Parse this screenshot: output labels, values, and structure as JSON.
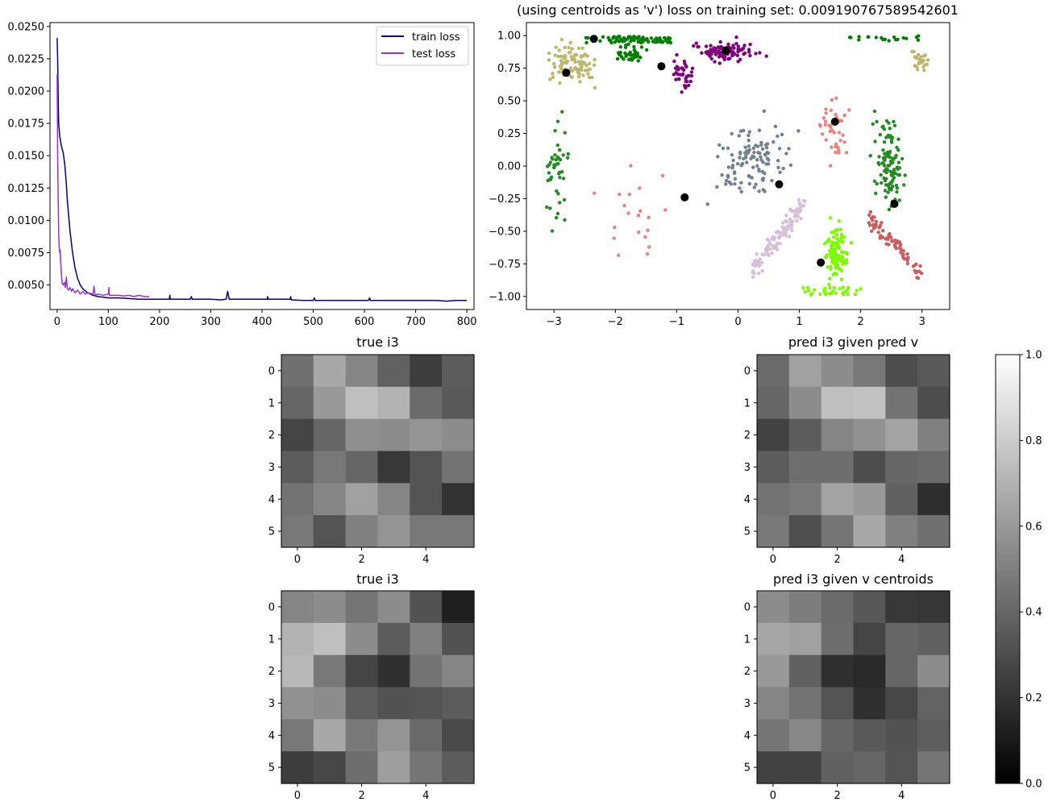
{
  "chart_data": [
    {
      "type": "line",
      "title": "",
      "xlim": [
        -14,
        814
      ],
      "ylim": [
        0.0031,
        0.0253
      ],
      "xticks": [
        "0",
        "100",
        "200",
        "300",
        "400",
        "500",
        "600",
        "700",
        "800"
      ],
      "yticks": [
        "0.0050",
        "0.0075",
        "0.0100",
        "0.0125",
        "0.0150",
        "0.0175",
        "0.0200",
        "0.0225",
        "0.0250"
      ],
      "legend": "top-right",
      "series": [
        {
          "name": "train loss",
          "color": "#00008b",
          "x": [
            0,
            1,
            2,
            3,
            5,
            8,
            10,
            12,
            15,
            18,
            20,
            25,
            30,
            35,
            40,
            45,
            50,
            60,
            70,
            80,
            90,
            100,
            120,
            140,
            160,
            180,
            200,
            219,
            220,
            221,
            240,
            260,
            262,
            264,
            280,
            300,
            320,
            330,
            333,
            336,
            360,
            380,
            400,
            410,
            411,
            412,
            440,
            455,
            456,
            457,
            480,
            500,
            502,
            504,
            520,
            540,
            560,
            580,
            600,
            608,
            610,
            612,
            640,
            660,
            680,
            700,
            720,
            740,
            760,
            780,
            800
          ],
          "y": [
            0.0241,
            0.0225,
            0.0195,
            0.0175,
            0.0165,
            0.0158,
            0.0155,
            0.0152,
            0.0143,
            0.0128,
            0.0115,
            0.0092,
            0.0075,
            0.0063,
            0.0055,
            0.005,
            0.0047,
            0.0044,
            0.0042,
            0.0041,
            0.00405,
            0.004,
            0.004,
            0.00395,
            0.0039,
            0.0039,
            0.0039,
            0.0039,
            0.0042,
            0.0039,
            0.0039,
            0.0039,
            0.0041,
            0.0039,
            0.0039,
            0.0039,
            0.00385,
            0.0039,
            0.0045,
            0.0039,
            0.0039,
            0.0039,
            0.0039,
            0.0039,
            0.0041,
            0.0039,
            0.0039,
            0.0039,
            0.0041,
            0.00385,
            0.0038,
            0.0038,
            0.004,
            0.0038,
            0.0038,
            0.0038,
            0.0038,
            0.0038,
            0.0038,
            0.0038,
            0.004,
            0.0038,
            0.0038,
            0.0038,
            0.0038,
            0.0038,
            0.0038,
            0.0038,
            0.00375,
            0.0038,
            0.0038
          ]
        },
        {
          "name": "test loss",
          "color": "#9932cc",
          "x": [
            0,
            1,
            2,
            3,
            4,
            5,
            6,
            7,
            8,
            9,
            10,
            12,
            14,
            16,
            18,
            20,
            22,
            25,
            28,
            30,
            35,
            40,
            45,
            50,
            55,
            60,
            70,
            72,
            74,
            80,
            90,
            100,
            101,
            102,
            110,
            120,
            130,
            140,
            150,
            160,
            170,
            180
          ],
          "y": [
            0.0213,
            0.015,
            0.0115,
            0.009,
            0.008,
            0.0075,
            0.0077,
            0.0068,
            0.006,
            0.0055,
            0.0051,
            0.005,
            0.0052,
            0.0048,
            0.0056,
            0.0047,
            0.0046,
            0.0048,
            0.0045,
            0.0047,
            0.0044,
            0.0046,
            0.0043,
            0.0045,
            0.0043,
            0.0044,
            0.0043,
            0.0049,
            0.0042,
            0.0043,
            0.0042,
            0.0043,
            0.0048,
            0.0042,
            0.0042,
            0.0042,
            0.00415,
            0.0042,
            0.0041,
            0.0042,
            0.0041,
            0.0041
          ]
        }
      ]
    },
    {
      "type": "scatter",
      "title": "(using centroids as 'v') loss on training set: 0.009190767589542601",
      "xlim": [
        -3.45,
        3.45
      ],
      "ylim": [
        -1.1,
        1.1
      ],
      "xticks": [
        "−3",
        "−2",
        "−1",
        "0",
        "1",
        "2",
        "3"
      ],
      "yticks": [
        "−1.00",
        "−0.75",
        "−0.50",
        "−0.25",
        "0.00",
        "0.25",
        "0.50",
        "0.75",
        "1.00"
      ],
      "clusters": [
        {
          "color": "#008000",
          "n": 80,
          "shape": "band",
          "cx": -1.8,
          "cy": 0.97,
          "sx": 0.7,
          "sy": 0.025
        },
        {
          "color": "#008000",
          "n": 40,
          "shape": "blob",
          "cx": -1.75,
          "cy": 0.86,
          "sx": 0.18,
          "sy": 0.05
        },
        {
          "color": "#bdb76b",
          "n": 100,
          "shape": "blob",
          "cx": -2.7,
          "cy": 0.78,
          "sx": 0.28,
          "sy": 0.1
        },
        {
          "color": "#bdb76b",
          "n": 28,
          "shape": "blob",
          "cx": 2.95,
          "cy": 0.82,
          "sx": 0.1,
          "sy": 0.07
        },
        {
          "color": "#800080",
          "n": 100,
          "shape": "blob",
          "cx": -0.2,
          "cy": 0.88,
          "sx": 0.35,
          "sy": 0.05
        },
        {
          "color": "#800080",
          "n": 40,
          "shape": "blob",
          "cx": -0.9,
          "cy": 0.72,
          "sx": 0.12,
          "sy": 0.09
        },
        {
          "color": "#008000",
          "n": 20,
          "shape": "band",
          "cx": 2.4,
          "cy": 0.98,
          "sx": 0.6,
          "sy": 0.02
        },
        {
          "color": "#228b22",
          "n": 110,
          "shape": "blob",
          "cx": 2.45,
          "cy": 0.05,
          "sx": 0.16,
          "sy": 0.25
        },
        {
          "color": "#228b22",
          "n": 45,
          "shape": "blob",
          "cx": -2.95,
          "cy": -0.05,
          "sx": 0.14,
          "sy": 0.25
        },
        {
          "color": "#f08080",
          "n": 40,
          "shape": "blob",
          "cx": 1.55,
          "cy": 0.28,
          "sx": 0.17,
          "sy": 0.15
        },
        {
          "color": "#f08080",
          "n": 20,
          "shape": "blob",
          "cx": -1.7,
          "cy": -0.35,
          "sx": 0.45,
          "sy": 0.25
        },
        {
          "color": "#708090",
          "n": 110,
          "shape": "blob",
          "cx": 0.25,
          "cy": 0.03,
          "sx": 0.45,
          "sy": 0.2
        },
        {
          "color": "#d8bfd8",
          "n": 110,
          "shape": "diag",
          "cx": 0.65,
          "cy": -0.55,
          "sx": 0.45,
          "sy": 0.06
        },
        {
          "color": "#7cfc00",
          "n": 110,
          "shape": "blob",
          "cx": 1.6,
          "cy": -0.65,
          "sx": 0.13,
          "sy": 0.14
        },
        {
          "color": "#7cfc00",
          "n": 30,
          "shape": "band",
          "cx": 1.55,
          "cy": -0.96,
          "sx": 0.5,
          "sy": 0.03
        },
        {
          "color": "#cd5c5c",
          "n": 75,
          "shape": "diag2",
          "cx": 2.55,
          "cy": -0.6,
          "sx": 0.45,
          "sy": 0.05
        }
      ],
      "centroids": {
        "color": "#000000",
        "x": [
          -2.35,
          -2.8,
          -1.25,
          -0.2,
          -0.87,
          0.67,
          1.58,
          2.55,
          1.35
        ],
        "y": [
          0.975,
          0.715,
          0.765,
          0.885,
          -0.24,
          -0.14,
          0.34,
          -0.29,
          -0.74
        ]
      }
    },
    {
      "type": "heatmap",
      "title": "true i3",
      "colormap": "gray",
      "vmin": 0,
      "vmax": 1,
      "xticks": [
        "0",
        "2",
        "4"
      ],
      "yticks": [
        "0",
        "1",
        "2",
        "3",
        "4",
        "5"
      ],
      "matrix": [
        [
          0.44,
          0.66,
          0.52,
          0.38,
          0.24,
          0.36
        ],
        [
          0.4,
          0.6,
          0.75,
          0.7,
          0.42,
          0.35
        ],
        [
          0.27,
          0.4,
          0.56,
          0.55,
          0.58,
          0.55
        ],
        [
          0.36,
          0.47,
          0.4,
          0.22,
          0.33,
          0.45
        ],
        [
          0.45,
          0.52,
          0.63,
          0.52,
          0.33,
          0.2
        ],
        [
          0.47,
          0.33,
          0.5,
          0.58,
          0.47,
          0.47
        ]
      ]
    },
    {
      "type": "heatmap",
      "title": "pred i3 given pred v",
      "colormap": "gray",
      "vmin": 0,
      "vmax": 1,
      "xticks": [
        "0",
        "2",
        "4"
      ],
      "yticks": [
        "0",
        "1",
        "2",
        "3",
        "4",
        "5"
      ],
      "matrix": [
        [
          0.42,
          0.63,
          0.55,
          0.47,
          0.3,
          0.35
        ],
        [
          0.4,
          0.55,
          0.75,
          0.76,
          0.45,
          0.3
        ],
        [
          0.26,
          0.36,
          0.52,
          0.57,
          0.64,
          0.5
        ],
        [
          0.36,
          0.43,
          0.43,
          0.3,
          0.4,
          0.42
        ],
        [
          0.45,
          0.48,
          0.64,
          0.6,
          0.38,
          0.18
        ],
        [
          0.47,
          0.31,
          0.46,
          0.66,
          0.5,
          0.44
        ]
      ]
    },
    {
      "type": "heatmap",
      "title": "true i3",
      "colormap": "gray",
      "vmin": 0,
      "vmax": 1,
      "xticks": [
        "0",
        "2",
        "4"
      ],
      "yticks": [
        "0",
        "1",
        "2",
        "3",
        "4",
        "5"
      ],
      "matrix": [
        [
          0.52,
          0.55,
          0.46,
          0.55,
          0.32,
          0.12
        ],
        [
          0.7,
          0.75,
          0.55,
          0.36,
          0.5,
          0.32
        ],
        [
          0.72,
          0.47,
          0.27,
          0.19,
          0.45,
          0.52
        ],
        [
          0.57,
          0.55,
          0.37,
          0.32,
          0.33,
          0.36
        ],
        [
          0.47,
          0.66,
          0.47,
          0.58,
          0.41,
          0.29
        ],
        [
          0.24,
          0.28,
          0.43,
          0.62,
          0.46,
          0.36
        ]
      ]
    },
    {
      "type": "heatmap",
      "title": "pred i3 given v centroids",
      "colormap": "gray",
      "vmin": 0,
      "vmax": 1,
      "xticks": [
        "0",
        "2",
        "4"
      ],
      "yticks": [
        "0",
        "1",
        "2",
        "3",
        "4",
        "5"
      ],
      "matrix": [
        [
          0.55,
          0.49,
          0.42,
          0.34,
          0.22,
          0.21
        ],
        [
          0.65,
          0.63,
          0.43,
          0.27,
          0.4,
          0.38
        ],
        [
          0.6,
          0.38,
          0.19,
          0.16,
          0.4,
          0.55
        ],
        [
          0.52,
          0.45,
          0.33,
          0.19,
          0.28,
          0.39
        ],
        [
          0.46,
          0.53,
          0.4,
          0.35,
          0.32,
          0.37
        ],
        [
          0.26,
          0.26,
          0.38,
          0.4,
          0.33,
          0.46
        ]
      ]
    }
  ],
  "colorbar": {
    "colormap": "gray",
    "vmin": 0,
    "vmax": 1,
    "ticks": [
      "0.0",
      "0.2",
      "0.4",
      "0.6",
      "0.8",
      "1.0"
    ]
  }
}
